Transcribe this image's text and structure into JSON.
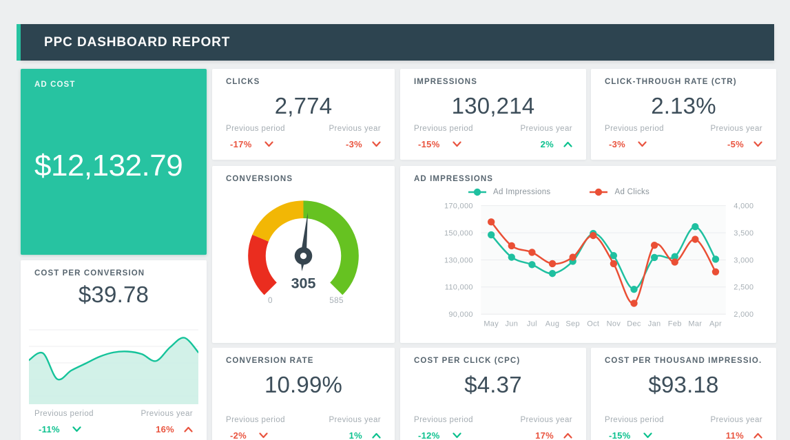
{
  "header": {
    "title": "PPC DASHBOARD REPORT"
  },
  "labels": {
    "prev_period": "Previous period",
    "prev_year": "Previous year"
  },
  "colors": {
    "accent_green": "#27c3a1",
    "header_bg": "#2d4450",
    "page_bg": "#edeff0",
    "card_bg": "#ffffff",
    "positive": "#0cc18e",
    "negative": "#e9543f",
    "value_text": "#3d4e5a",
    "title_text": "#57656f",
    "muted_text": "#a4acb2"
  },
  "cards": {
    "ad_cost": {
      "title": "AD COST",
      "value": "$12,132.79"
    },
    "clicks": {
      "title": "CLICKS",
      "value": "2,774",
      "prev_period_value": "-17%",
      "prev_period_trend": {
        "dir": "down",
        "tone": "neg"
      },
      "prev_year_value": "-3%",
      "prev_year_trend": {
        "dir": "down",
        "tone": "neg"
      }
    },
    "impressions": {
      "title": "IMPRESSIONS",
      "value": "130,214",
      "prev_period_value": "-15%",
      "prev_period_trend": {
        "dir": "down",
        "tone": "neg"
      },
      "prev_year_value": "2%",
      "prev_year_trend": {
        "dir": "up",
        "tone": "pos"
      }
    },
    "ctr": {
      "title": "CLICK-THROUGH RATE (CTR)",
      "value": "2.13%",
      "prev_period_value": "-3%",
      "prev_period_trend": {
        "dir": "down",
        "tone": "neg"
      },
      "prev_year_value": "-5%",
      "prev_year_trend": {
        "dir": "down",
        "tone": "neg"
      }
    },
    "conversions": {
      "title": "CONVERSIONS"
    },
    "ad_impressions": {
      "title": "AD IMPRESSIONS"
    },
    "cost_per_conversion": {
      "title": "COST PER CONVERSION",
      "value": "$39.78",
      "prev_period_value": "-11%",
      "prev_period_trend": {
        "dir": "down",
        "tone": "pos"
      },
      "prev_year_value": "16%",
      "prev_year_trend": {
        "dir": "up",
        "tone": "neg"
      }
    },
    "conversion_rate": {
      "title": "CONVERSION RATE",
      "value": "10.99%",
      "prev_period_value": "-2%",
      "prev_period_trend": {
        "dir": "down",
        "tone": "neg"
      },
      "prev_year_value": "1%",
      "prev_year_trend": {
        "dir": "up",
        "tone": "pos"
      }
    },
    "cpc": {
      "title": "COST PER CLICK (CPC)",
      "value": "$4.37",
      "prev_period_value": "-12%",
      "prev_period_trend": {
        "dir": "down",
        "tone": "pos"
      },
      "prev_year_value": "17%",
      "prev_year_trend": {
        "dir": "up",
        "tone": "neg"
      }
    },
    "cpm": {
      "title": "COST PER THOUSAND IMPRESSIO...",
      "value": "$93.18",
      "prev_period_value": "-15%",
      "prev_period_trend": {
        "dir": "down",
        "tone": "pos"
      },
      "prev_year_value": "11%",
      "prev_year_trend": {
        "dir": "up",
        "tone": "neg"
      }
    }
  },
  "chart_data": [
    {
      "type": "gauge",
      "title": "CONVERSIONS",
      "value": 305,
      "min": 0,
      "max": 585,
      "value_label": "305",
      "min_label": "0",
      "max_label": "585",
      "start_angle": 225,
      "span": 270,
      "segments": [
        {
          "from": 0,
          "to": 0.25,
          "color": "#ea2d1f"
        },
        {
          "from": 0.25,
          "to": 0.5,
          "color": "#f2b705"
        },
        {
          "from": 0.5,
          "to": 1,
          "color": "#66c221"
        }
      ],
      "needle_color": "#36454f"
    },
    {
      "type": "line",
      "title": "AD IMPRESSIONS",
      "x": [
        "May",
        "Jun",
        "Jul",
        "Aug",
        "Sep",
        "Oct",
        "Nov",
        "Dec",
        "Jan",
        "Feb",
        "Mar",
        "Apr"
      ],
      "series": [
        {
          "name": "Ad Impressions",
          "color": "#1fc0a0",
          "axis": "left",
          "values": [
            148500,
            132000,
            126500,
            120000,
            129000,
            149500,
            133200,
            108300,
            131800,
            132400,
            154500,
            130500
          ]
        },
        {
          "name": "Ad Clicks",
          "color": "#ea4f35",
          "axis": "right",
          "values": [
            3700,
            3260,
            3140,
            2930,
            3050,
            3450,
            2930,
            2200,
            3270,
            2960,
            3380,
            2780
          ]
        }
      ],
      "left_axis": {
        "min": 90000,
        "max": 170000,
        "tick_labels": [
          "170,000",
          "150,000",
          "130,000",
          "110,000",
          "90,000"
        ]
      },
      "right_axis": {
        "min": 2000,
        "max": 4000,
        "tick_labels": [
          "4,000",
          "3,500",
          "3,000",
          "2,500",
          "2,000"
        ]
      },
      "grid": true,
      "legend_position": "top"
    },
    {
      "type": "area",
      "title": "COST PER CONVERSION TREND",
      "color": "#15c39a",
      "fill": "#cdf0e6",
      "values": [
        48,
        56,
        26,
        36,
        44,
        52,
        57,
        58,
        55,
        47,
        63,
        74,
        57
      ],
      "ylim": [
        0,
        100
      ],
      "grid": true
    }
  ]
}
